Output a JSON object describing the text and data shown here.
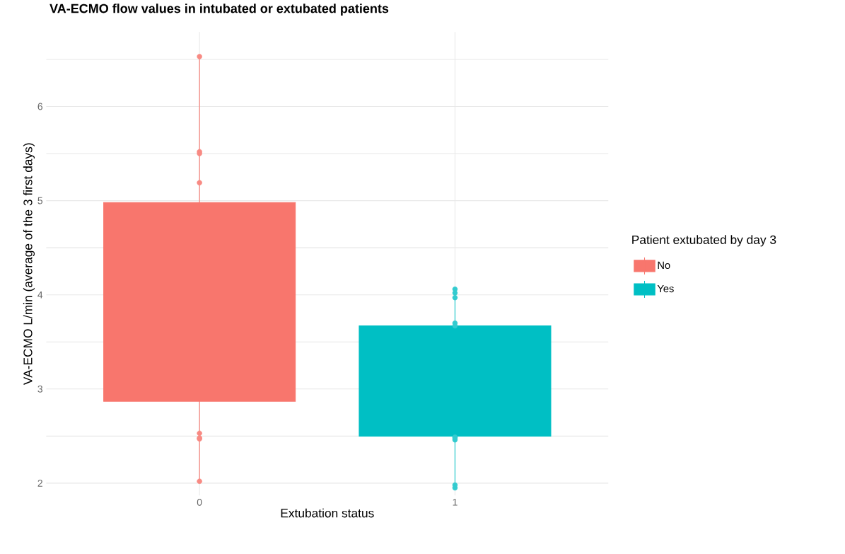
{
  "chart_data": {
    "type": "box",
    "title": "VA-ECMO flow values in intubated or extubated patients",
    "xlabel": "Extubation status",
    "ylabel": "VA-ECMO L/min (average of the 3 first days)",
    "legend_title": "Patient extubated by day 3",
    "categories": [
      "0",
      "1"
    ],
    "series": [
      {
        "name": "No",
        "color": "#f8766d",
        "boxes": [
          {
            "low": 2.0,
            "q1": 2.87,
            "q3": 4.98,
            "high": 6.51
          },
          null
        ]
      },
      {
        "name": "Yes",
        "color": "#00bfc4",
        "boxes": [
          null,
          {
            "low": 2.0,
            "q1": 2.5,
            "q3": 3.67,
            "high": 4.01
          }
        ]
      },
      {
        "type": "scatter",
        "color": "#f88a83",
        "x": [
          "0",
          "0",
          "0",
          "0",
          "0",
          "0",
          "0",
          "0"
        ],
        "values": [
          6.53,
          5.52,
          5.5,
          5.19,
          2.53,
          2.47,
          2.48,
          2.02
        ]
      },
      {
        "type": "scatter",
        "color": "#33cbcf",
        "x": [
          "1",
          "1",
          "1",
          "1",
          "1",
          "1",
          "1",
          "1",
          "1",
          "1"
        ],
        "values": [
          4.02,
          4.06,
          3.97,
          3.7,
          2.46,
          2.48,
          2.49,
          1.95,
          1.98,
          3.67
        ]
      }
    ],
    "ylim": [
      1.87,
      6.79
    ],
    "yticks": [
      2,
      {
        "value": 2.5,
        "label": null
      },
      3,
      {
        "value": 3.5,
        "label": null
      },
      4,
      {
        "value": 4.5,
        "label": null
      },
      5,
      {
        "value": 5.5,
        "label": null
      },
      6,
      {
        "value": 6.5,
        "label": null
      }
    ],
    "grid": true,
    "legend": "right"
  }
}
